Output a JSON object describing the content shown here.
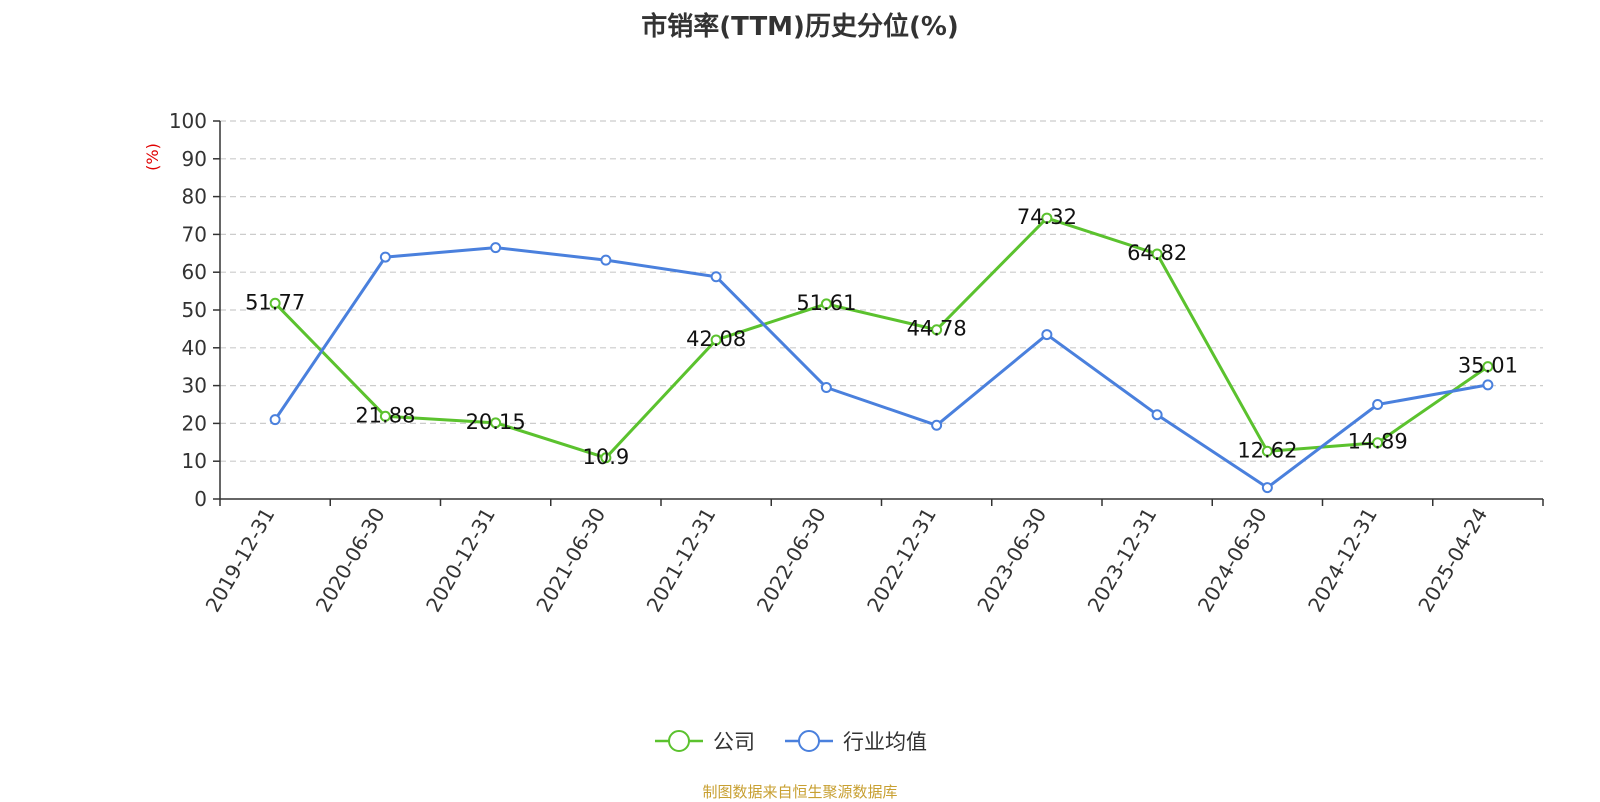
{
  "chart_data": {
    "type": "line",
    "title": "市销率(TTM)历史分位(%)",
    "ylabel": "(%)",
    "ylim": [
      0,
      100
    ],
    "yticks": [
      0,
      10,
      20,
      30,
      40,
      50,
      60,
      70,
      80,
      90,
      100
    ],
    "categories": [
      "2019-12-31",
      "2020-06-30",
      "2020-12-31",
      "2021-06-30",
      "2021-12-31",
      "2022-06-30",
      "2022-12-31",
      "2023-06-30",
      "2023-12-31",
      "2024-06-30",
      "2024-12-31",
      "2025-04-24"
    ],
    "grid": true,
    "legend_position": "bottom",
    "series": [
      {
        "name": "公司",
        "color": "#5bc22e",
        "show_labels": true,
        "values": [
          51.77,
          21.88,
          20.15,
          10.9,
          42.08,
          51.61,
          44.78,
          74.32,
          64.82,
          12.62,
          14.89,
          35.01
        ],
        "labels": [
          "51.77",
          "21.88",
          "20.15",
          "10.9",
          "42.08",
          "51.61",
          "44.78",
          "74.32",
          "64.82",
          "12.62",
          "14.89",
          "35.01"
        ]
      },
      {
        "name": "行业均值",
        "color": "#4a80dd",
        "show_labels": false,
        "values": [
          21,
          64,
          66.5,
          63.2,
          58.8,
          29.5,
          19.5,
          43.5,
          22.3,
          3,
          25,
          30.2
        ]
      }
    ]
  },
  "source_note": "制图数据来自恒生聚源数据库"
}
